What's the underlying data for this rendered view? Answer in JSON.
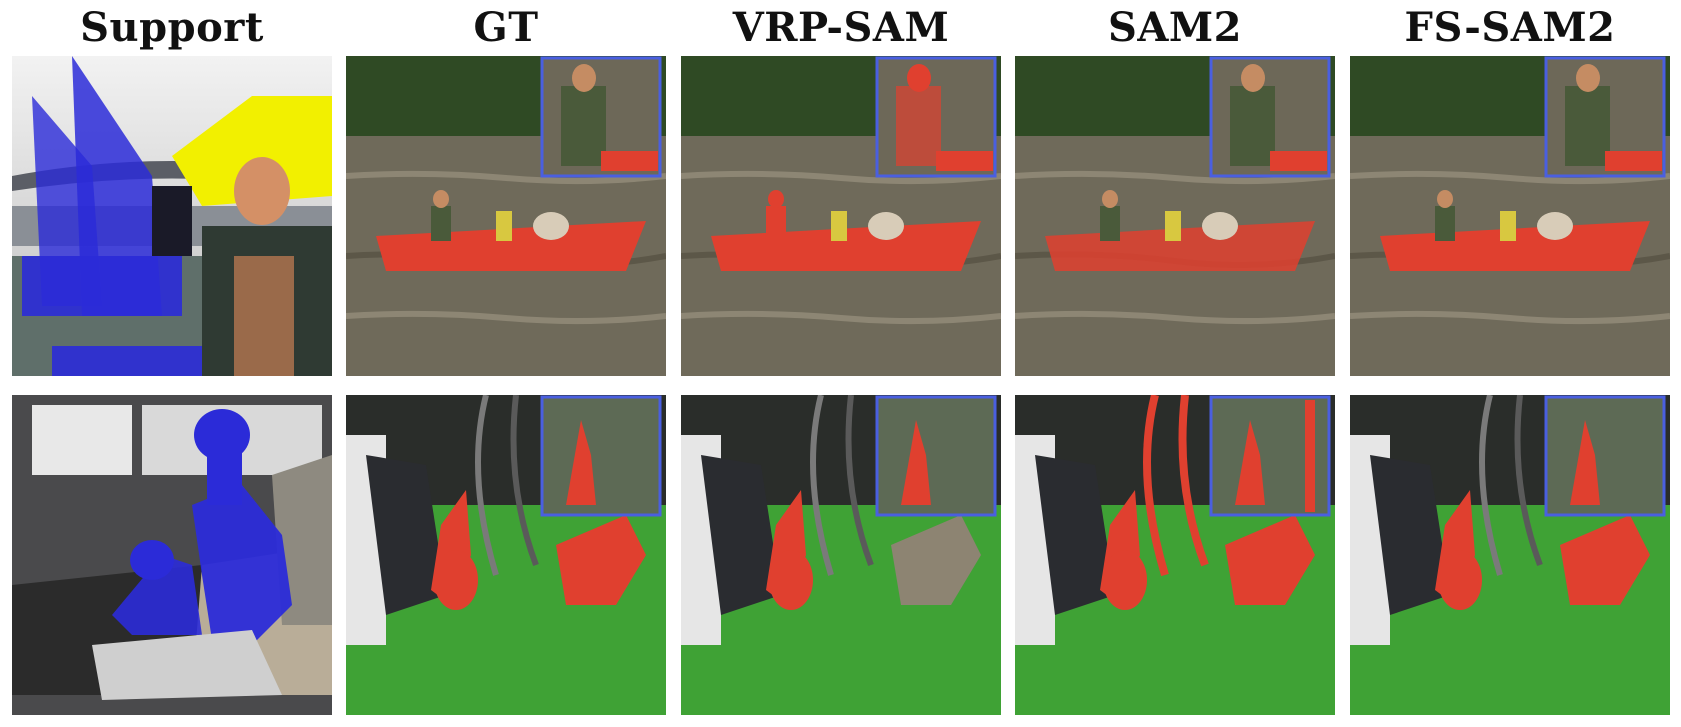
{
  "headers": [
    "Support",
    "GT",
    "VRP-SAM",
    "SAM2",
    "FS-SAM2"
  ],
  "colors": {
    "support_mask": "#2b2bd8",
    "prediction_mask": "#e0402f",
    "inset_border": "#4a5fe0"
  }
}
